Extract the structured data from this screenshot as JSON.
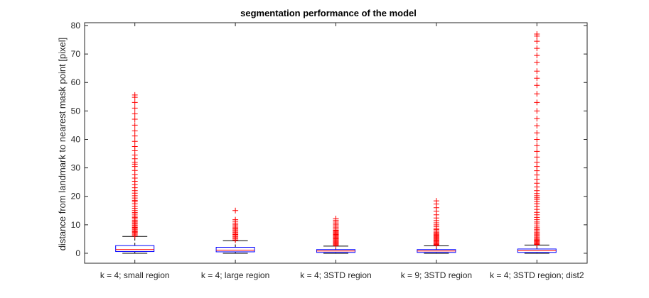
{
  "chart_data": {
    "type": "boxplot",
    "title": "segmentation performance of the model",
    "xlabel": "",
    "ylabel": "distance from landmark to nearest mask point [pixel]",
    "ylim": [
      -3.5,
      81
    ],
    "yticks": [
      0,
      10,
      20,
      30,
      40,
      50,
      60,
      70,
      80
    ],
    "grid": false,
    "colors": {
      "box": "#0000ff",
      "median": "#ff0000",
      "whisker": "#000000",
      "outlier": "#ff0000"
    },
    "categories": [
      "k = 4; small region",
      "k = 4; large region",
      "k = 4; 3STD region",
      "k = 9; 3STD region",
      "k = 4; 3STD region; dist2"
    ],
    "boxes": [
      {
        "lower_whisker": 0,
        "q1": 0.6,
        "median": 1.3,
        "q3": 2.7,
        "upper_whisker": 5.9,
        "outliers": [
          6.1,
          6.5,
          6.9,
          7.3,
          7.6,
          8.0,
          8.4,
          8.8,
          9.1,
          9.5,
          9.9,
          10.3,
          10.7,
          11.1,
          11.6,
          12.1,
          12.6,
          13.1,
          13.7,
          14.3,
          15.0,
          15.8,
          16.5,
          17.4,
          18.1,
          18.6,
          19.4,
          20.2,
          21.1,
          22.0,
          23.0,
          24.1,
          25.3,
          26.4,
          27.7,
          29.1,
          30.5,
          31.3,
          32.0,
          33.2,
          34.5,
          36.0,
          37.5,
          39.3,
          41.2,
          43.0,
          45.0,
          47.1,
          49.0,
          51.0,
          53.0,
          54.8,
          55.6
        ]
      },
      {
        "lower_whisker": 0,
        "q1": 0.5,
        "median": 1.1,
        "q3": 2.1,
        "upper_whisker": 4.4,
        "outliers": [
          4.6,
          5.0,
          5.4,
          5.8,
          6.2,
          6.6,
          7.0,
          7.4,
          7.8,
          8.2,
          8.6,
          9.0,
          9.5,
          10.0,
          10.6,
          11.2,
          11.8,
          15.0
        ]
      },
      {
        "lower_whisker": 0,
        "q1": 0.3,
        "median": 0.8,
        "q3": 1.3,
        "upper_whisker": 2.5,
        "outliers": [
          2.7,
          3.0,
          3.3,
          3.6,
          3.9,
          4.2,
          4.5,
          4.8,
          5.1,
          5.4,
          5.7,
          6.0,
          6.3,
          6.6,
          6.9,
          7.2,
          7.5,
          7.8,
          8.1,
          8.5,
          9.0,
          9.5,
          10.0,
          10.5,
          11.0,
          11.6,
          12.2
        ]
      },
      {
        "lower_whisker": 0,
        "q1": 0.3,
        "median": 0.8,
        "q3": 1.3,
        "upper_whisker": 2.6,
        "outliers": [
          2.8,
          3.1,
          3.4,
          3.7,
          4.0,
          4.3,
          4.6,
          4.9,
          5.2,
          5.5,
          5.8,
          6.1,
          6.4,
          6.7,
          7.0,
          7.4,
          7.8,
          8.3,
          8.8,
          9.4,
          10.0,
          10.7,
          11.5,
          12.4,
          13.5,
          14.8,
          16.0,
          17.3,
          18.4
        ]
      },
      {
        "lower_whisker": 0,
        "q1": 0.3,
        "median": 0.9,
        "q3": 1.5,
        "upper_whisker": 2.9,
        "outliers": [
          3.1,
          3.4,
          3.7,
          4.0,
          4.3,
          4.6,
          4.9,
          5.3,
          5.7,
          6.1,
          6.5,
          6.9,
          7.4,
          7.9,
          8.4,
          9.0,
          9.6,
          10.3,
          11.0,
          11.8,
          12.6,
          13.5,
          14.4,
          15.4,
          16.4,
          17.4,
          18.2,
          18.9,
          19.5,
          20.2,
          21.0,
          22.0,
          23.3,
          24.6,
          26.0,
          27.5,
          29.0,
          30.5,
          32.0,
          33.8,
          35.8,
          37.8,
          40.0,
          42.3,
          44.8,
          47.3,
          50.0,
          53.0,
          56.0,
          59.0,
          61.5,
          64.0,
          67.0,
          69.5,
          72.0,
          74.5,
          76.3,
          77.0
        ]
      }
    ]
  }
}
